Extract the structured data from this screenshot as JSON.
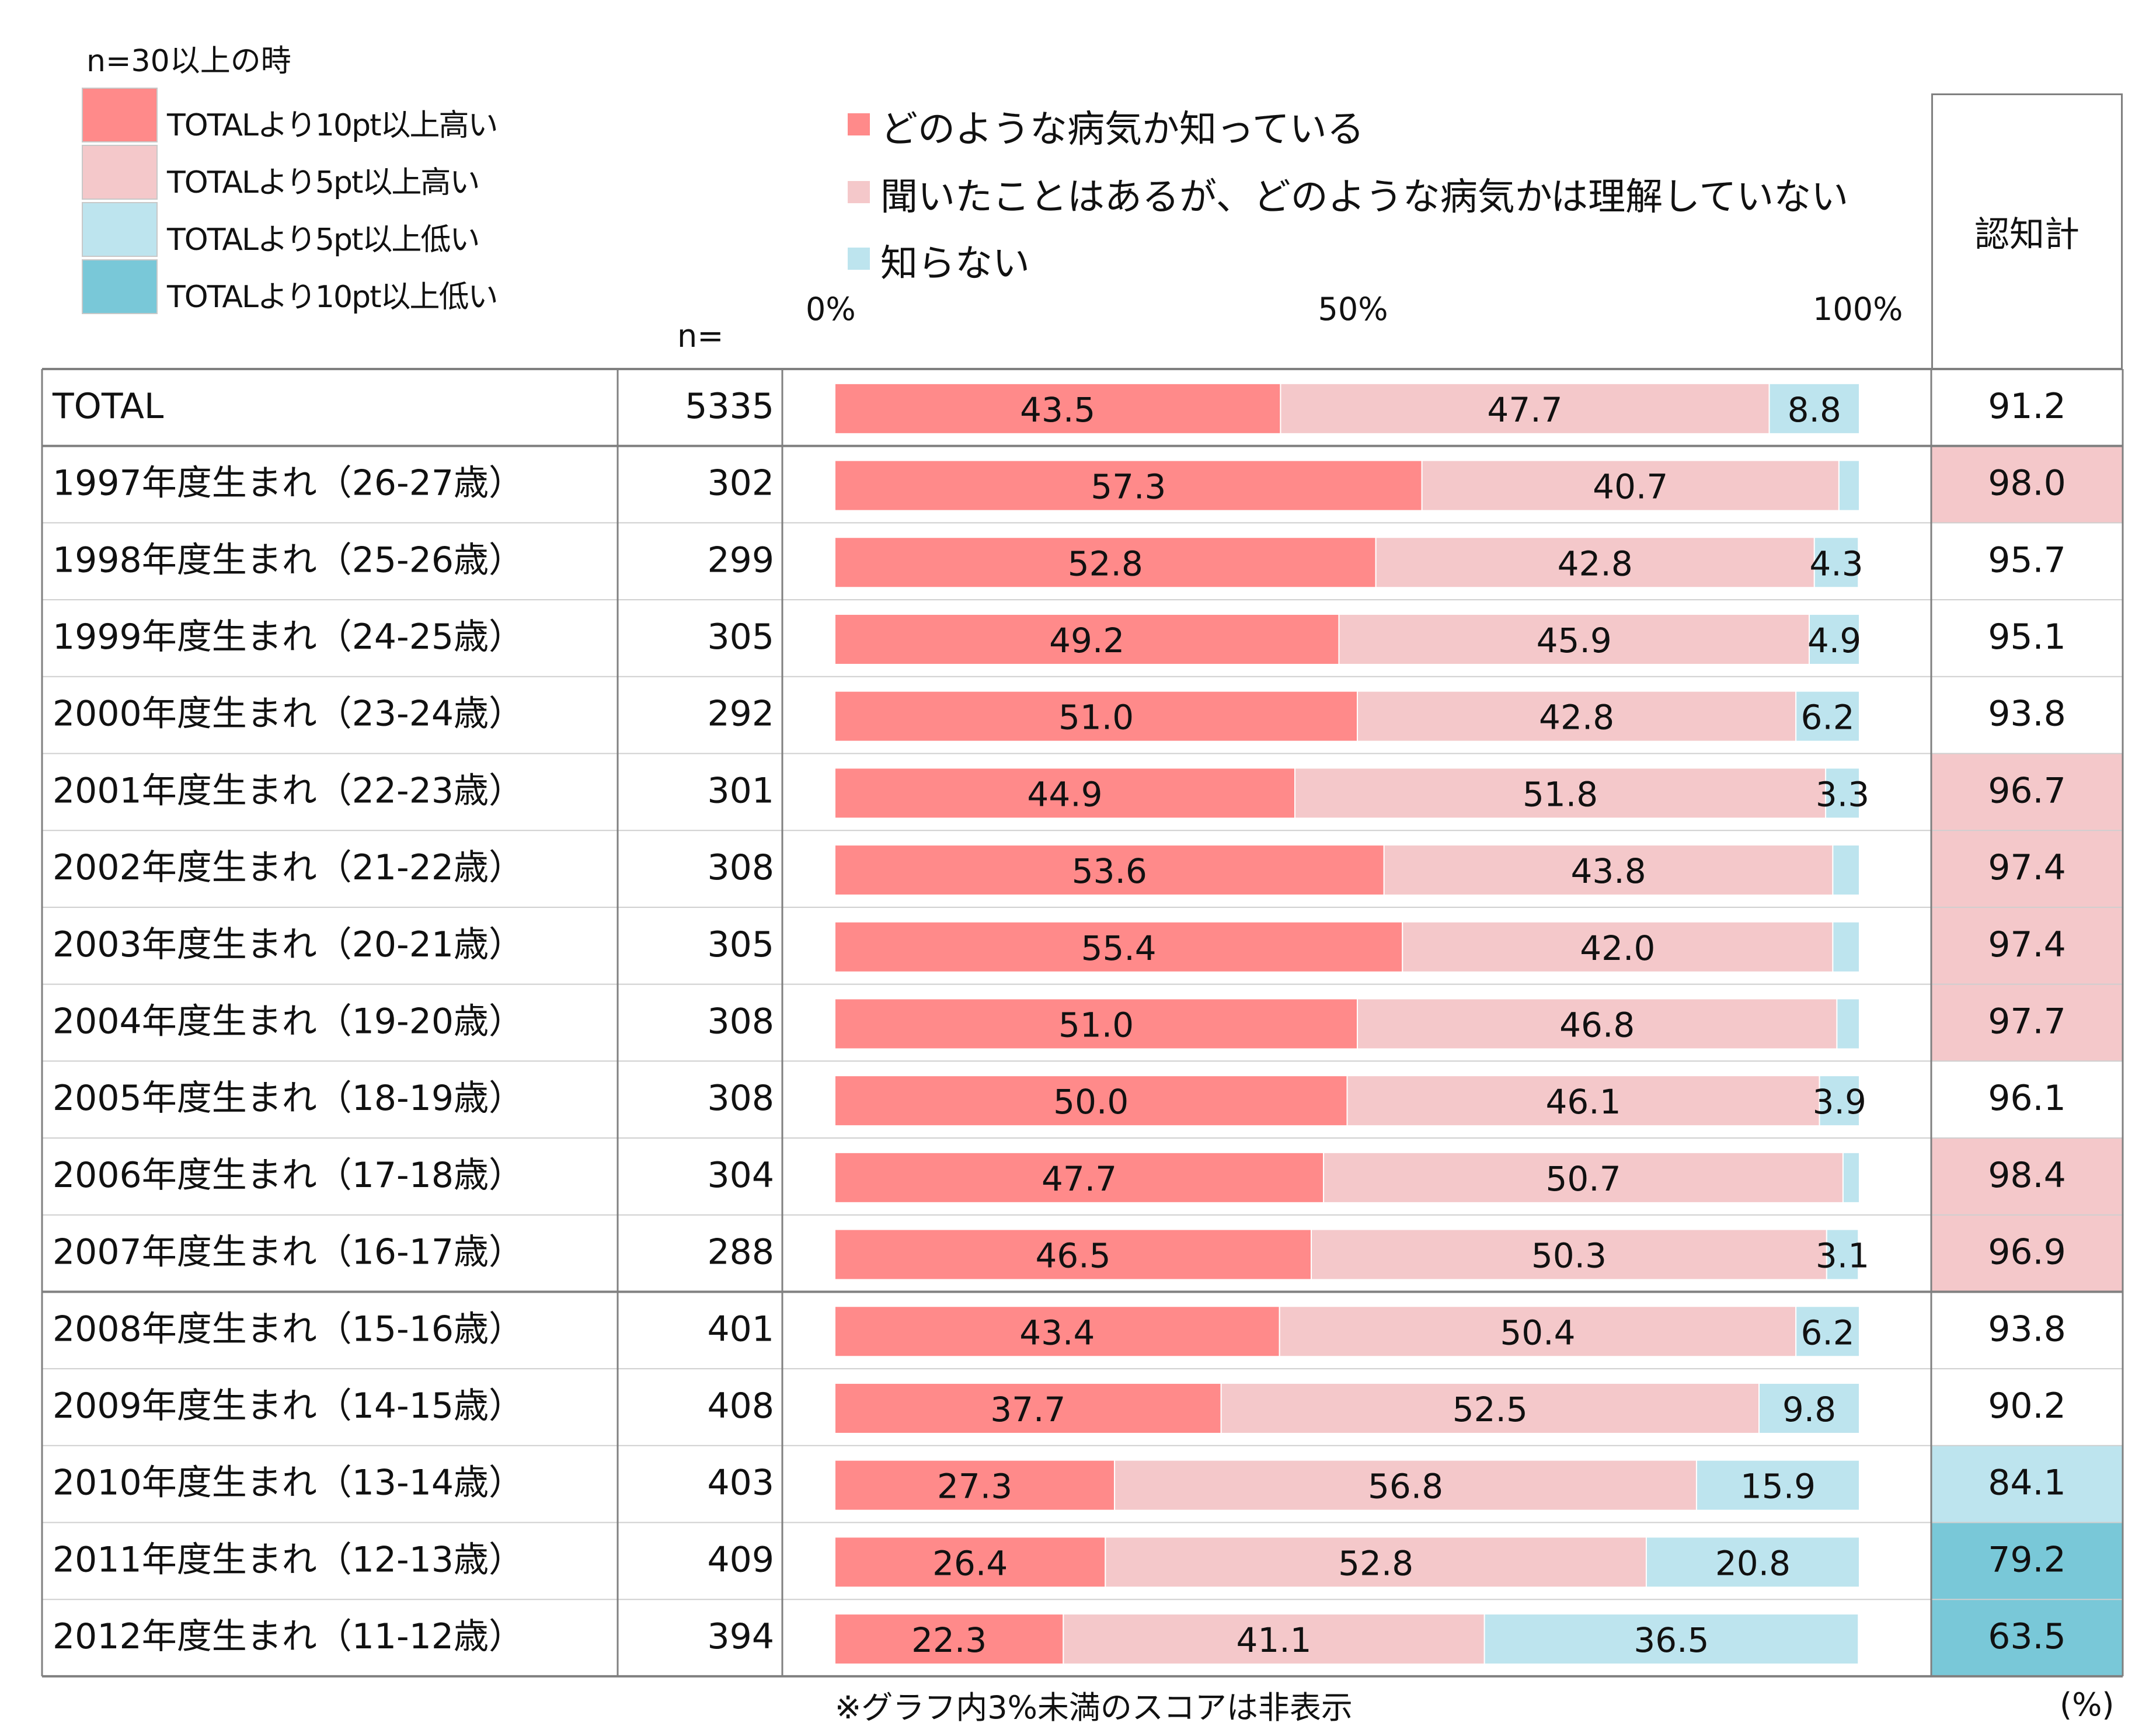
{
  "legend": {
    "condition_title": "n=30以上の時",
    "conditions": [
      {
        "label": "TOTALより10pt以上高い",
        "color": "#ff8a8a"
      },
      {
        "label": "TOTALより5pt以上高い",
        "color": "#f4c8ca"
      },
      {
        "label": "TOTALより5pt以上低い",
        "color": "#bde4ee"
      },
      {
        "label": "TOTALより10pt以上低い",
        "color": "#79c8d8"
      }
    ]
  },
  "headers": {
    "n": "n=",
    "sum": "認知計"
  },
  "footnote": "※グラフ内3%未満のスコアは非表示",
  "unit": "(%)",
  "chart_data": {
    "type": "bar",
    "stacked": true,
    "orientation": "horizontal",
    "xlim": [
      0,
      100
    ],
    "ticks": [
      "0%",
      "50%",
      "100%"
    ],
    "grid": false,
    "legend_position": "top",
    "label_threshold": 3,
    "series": [
      {
        "name": "どのような病気か知っている",
        "color": "#ff8a8a",
        "values": [
          43.5,
          57.3,
          52.8,
          49.2,
          51.0,
          44.9,
          53.6,
          55.4,
          51.0,
          50.0,
          47.7,
          46.5,
          43.4,
          37.7,
          27.3,
          26.4,
          22.3
        ]
      },
      {
        "name": "聞いたことはあるが、どのような病気かは理解していない",
        "color": "#f4c8ca",
        "values": [
          47.7,
          40.7,
          42.8,
          45.9,
          42.8,
          51.8,
          43.8,
          42.0,
          46.8,
          46.1,
          50.7,
          50.3,
          50.4,
          52.5,
          56.8,
          52.8,
          41.1
        ]
      },
      {
        "name": "知らない",
        "color": "#bde4ee",
        "values": [
          8.8,
          2.0,
          4.3,
          4.9,
          6.2,
          3.3,
          2.6,
          2.6,
          2.3,
          3.9,
          1.6,
          3.1,
          6.2,
          9.8,
          15.9,
          20.8,
          36.5
        ]
      }
    ],
    "rows": [
      {
        "label": "TOTAL",
        "n": "5335",
        "sum": "91.2",
        "highlight": ""
      },
      {
        "label": "1997年度生まれ（26-27歳）",
        "n": "302",
        "sum": "98.0",
        "highlight": "#f4c8ca"
      },
      {
        "label": "1998年度生まれ（25-26歳）",
        "n": "299",
        "sum": "95.7",
        "highlight": ""
      },
      {
        "label": "1999年度生まれ（24-25歳）",
        "n": "305",
        "sum": "95.1",
        "highlight": ""
      },
      {
        "label": "2000年度生まれ（23-24歳）",
        "n": "292",
        "sum": "93.8",
        "highlight": ""
      },
      {
        "label": "2001年度生まれ（22-23歳）",
        "n": "301",
        "sum": "96.7",
        "highlight": "#f4c8ca"
      },
      {
        "label": "2002年度生まれ（21-22歳）",
        "n": "308",
        "sum": "97.4",
        "highlight": "#f4c8ca"
      },
      {
        "label": "2003年度生まれ（20-21歳）",
        "n": "305",
        "sum": "97.4",
        "highlight": "#f4c8ca"
      },
      {
        "label": "2004年度生まれ（19-20歳）",
        "n": "308",
        "sum": "97.7",
        "highlight": "#f4c8ca"
      },
      {
        "label": "2005年度生まれ（18-19歳）",
        "n": "308",
        "sum": "96.1",
        "highlight": ""
      },
      {
        "label": "2006年度生まれ（17-18歳）",
        "n": "304",
        "sum": "98.4",
        "highlight": "#f4c8ca"
      },
      {
        "label": "2007年度生まれ（16-17歳）",
        "n": "288",
        "sum": "96.9",
        "highlight": "#f4c8ca"
      },
      {
        "label": "2008年度生まれ（15-16歳）",
        "n": "401",
        "sum": "93.8",
        "highlight": ""
      },
      {
        "label": "2009年度生まれ（14-15歳）",
        "n": "408",
        "sum": "90.2",
        "highlight": ""
      },
      {
        "label": "2010年度生まれ（13-14歳）",
        "n": "403",
        "sum": "84.1",
        "highlight": "#bde4ee"
      },
      {
        "label": "2011年度生まれ（12-13歳）",
        "n": "409",
        "sum": "79.2",
        "highlight": "#79c8d8"
      },
      {
        "label": "2012年度生まれ（11-12歳）",
        "n": "394",
        "sum": "63.5",
        "highlight": "#79c8d8"
      }
    ]
  }
}
